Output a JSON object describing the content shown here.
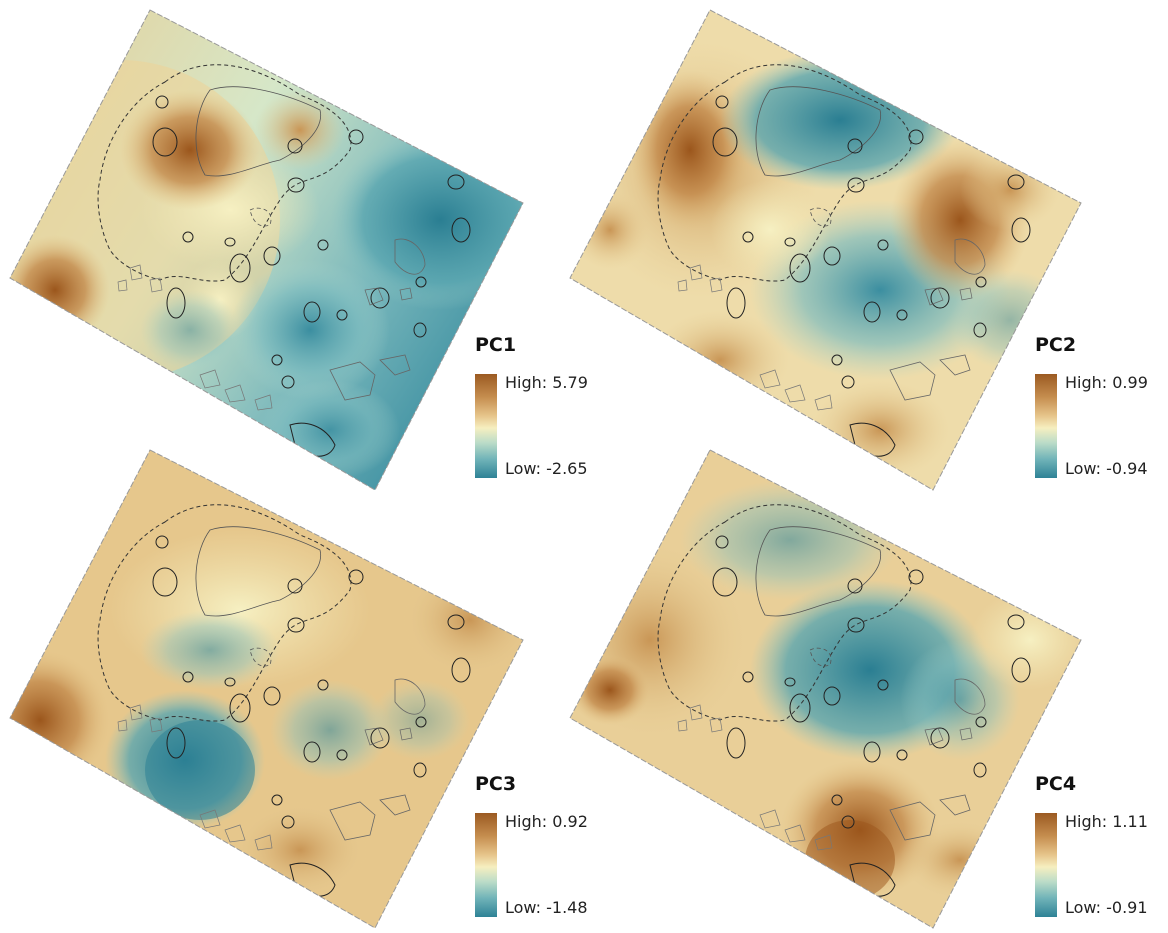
{
  "panels": [
    {
      "id": "pc1",
      "title": "PC1",
      "high_label": "High: 5.79",
      "low_label": "Low: -2.65",
      "high_value": 5.79,
      "low_value": -2.65
    },
    {
      "id": "pc2",
      "title": "PC2",
      "high_label": "High: 0.99",
      "low_label": "Low: -0.94",
      "high_value": 0.99,
      "low_value": -0.94
    },
    {
      "id": "pc3",
      "title": "PC3",
      "high_label": "High: 0.92",
      "low_label": "Low: -1.48",
      "high_value": 0.92,
      "low_value": -1.48
    },
    {
      "id": "pc4",
      "title": "PC4",
      "high_label": "High: 1.11",
      "low_label": "Low: -0.91",
      "high_value": 1.11,
      "low_value": -0.91
    }
  ],
  "colors": {
    "high": "#9b5a22",
    "mid": "#f6efc0",
    "low": "#2e8296"
  }
}
